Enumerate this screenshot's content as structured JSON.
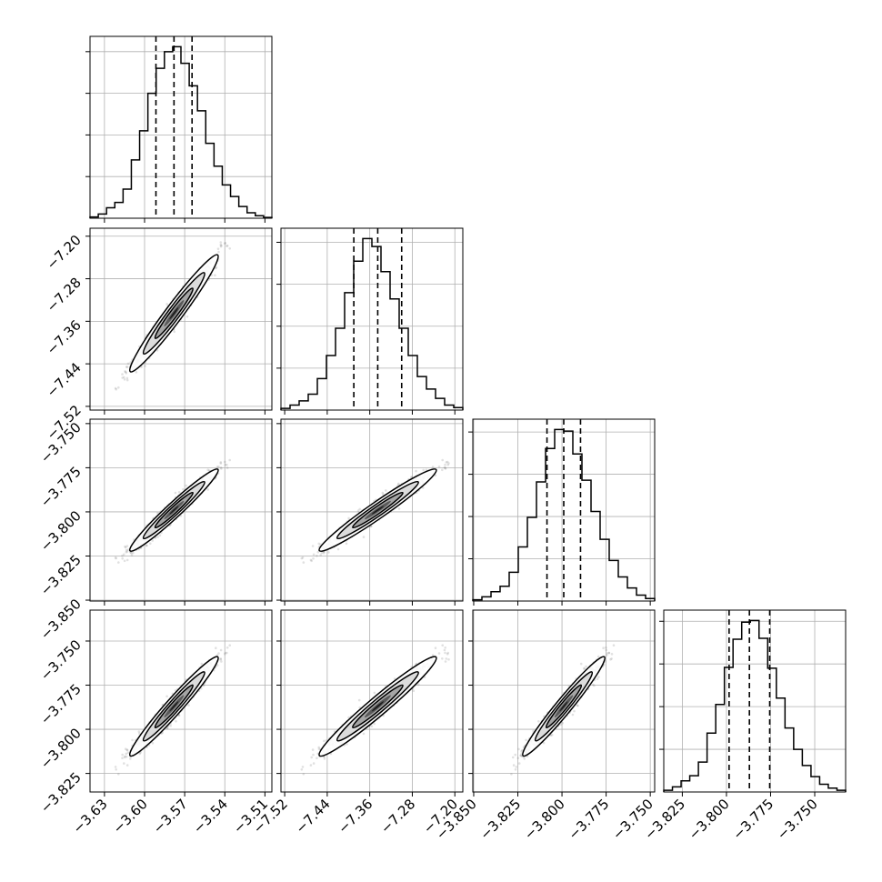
{
  "chart_data": {
    "type": "corner",
    "title": "",
    "grid": true,
    "parameters": [
      {
        "index": 0,
        "mean": -3.578,
        "std": 0.0135,
        "range": [
          -3.6408,
          -3.5048
        ],
        "ticks": [
          -3.63,
          -3.6,
          -3.57,
          -3.54,
          -3.51
        ],
        "tick_labels": [
          "−3.63",
          "−3.60",
          "−3.57",
          "−3.54",
          "−3.51"
        ],
        "quantiles": [
          -3.5915,
          -3.578,
          -3.5645
        ]
      },
      {
        "index": 1,
        "mean": -7.345,
        "std": 0.045,
        "range": [
          -7.527,
          -7.185
        ],
        "ticks": [
          -7.52,
          -7.44,
          -7.36,
          -7.28,
          -7.2
        ],
        "tick_labels": [
          "−7.52",
          "−7.44",
          "−7.36",
          "−7.28",
          "−7.20"
        ],
        "quantiles": [
          -7.39,
          -7.345,
          -7.3
        ]
      },
      {
        "index": 2,
        "mean": -3.799,
        "std": 0.0095,
        "range": [
          -3.8505,
          -3.7475
        ],
        "ticks": [
          -3.85,
          -3.825,
          -3.8,
          -3.775,
          -3.75
        ],
        "tick_labels": [
          "−3.850",
          "−3.825",
          "−3.800",
          "−3.775",
          "−3.750"
        ],
        "quantiles": [
          -3.8085,
          -3.799,
          -3.7895
        ]
      },
      {
        "index": 3,
        "mean": -3.787,
        "std": 0.0115,
        "range": [
          -3.8355,
          -3.7325
        ],
        "ticks": [
          -3.825,
          -3.8,
          -3.775,
          -3.75
        ],
        "tick_labels": [
          "−3.825",
          "−3.800",
          "−3.775",
          "−3.750"
        ],
        "quantiles": [
          -3.7985,
          -3.787,
          -3.7755
        ]
      }
    ],
    "correlation": 0.97,
    "histograms": [
      {
        "param": 0,
        "counts": [
          3,
          10,
          25,
          38,
          70,
          140,
          210,
          300,
          360,
          400,
          412,
          372,
          318,
          258,
          180,
          125,
          80,
          52,
          28,
          13,
          6,
          2
        ]
      },
      {
        "param": 1,
        "counts": [
          4,
          12,
          22,
          38,
          75,
          130,
          195,
          280,
          355,
          409,
          390,
          330,
          265,
          195,
          130,
          80,
          50,
          28,
          12,
          6
        ]
      },
      {
        "param": 2,
        "counts": [
          3,
          10,
          22,
          35,
          68,
          128,
          198,
          282,
          361,
          406,
          402,
          348,
          286,
          212,
          146,
          96,
          57,
          31,
          14,
          6
        ]
      },
      {
        "param": 3,
        "counts": [
          4,
          12,
          26,
          38,
          70,
          138,
          205,
          292,
          358,
          398,
          402,
          360,
          290,
          220,
          150,
          100,
          62,
          36,
          18,
          9,
          4
        ]
      }
    ]
  }
}
